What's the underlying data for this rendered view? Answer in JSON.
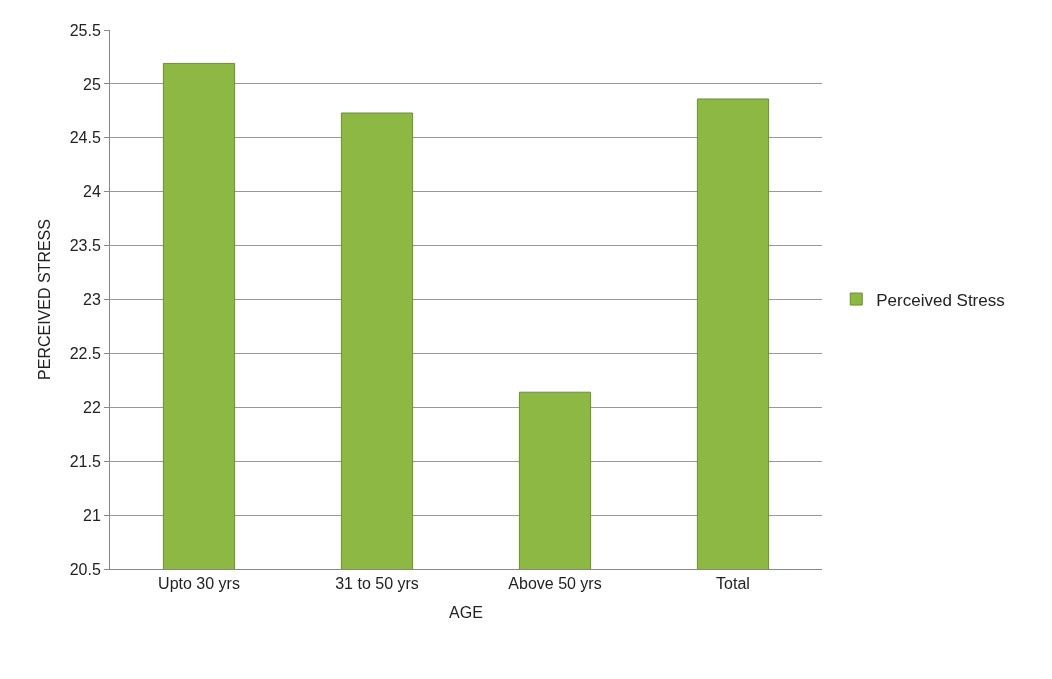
{
  "chart_data": {
    "type": "bar",
    "xlabel": "AGE",
    "ylabel": "PERCEIVED STRESS",
    "categories": [
      "Upto 30 yrs",
      "31 to 50 yrs",
      "Above 50 yrs",
      "Total"
    ],
    "series": [
      {
        "name": "Perceived Stress",
        "color": "#8db843",
        "values": [
          25.19,
          24.73,
          22.14,
          24.86
        ]
      }
    ],
    "ylim": [
      20.5,
      25.5
    ],
    "yticks": [
      {
        "value": 20.5,
        "label": "20.5"
      },
      21,
      {
        "value": 21.5,
        "label": "21.5"
      },
      22,
      {
        "value": 22.5,
        "label": "22.5"
      },
      23,
      {
        "value": 23.5,
        "label": "23.5"
      },
      24,
      {
        "value": 24.5,
        "label": "24.5"
      },
      25,
      {
        "value": 25.5,
        "label": "25.5"
      }
    ],
    "grid": "y",
    "legend": "right"
  }
}
